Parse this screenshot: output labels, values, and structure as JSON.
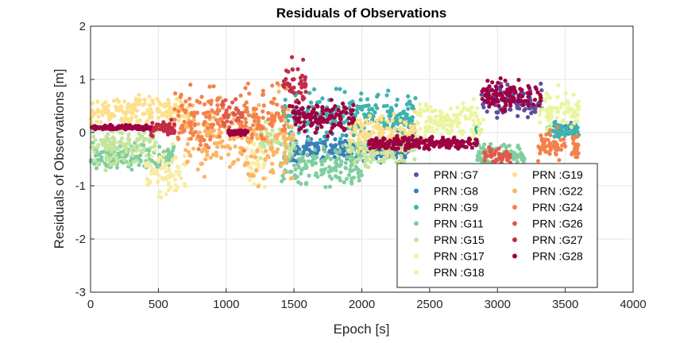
{
  "chart_data": {
    "type": "scatter",
    "title": "Residuals of Observations",
    "xlabel": "Epoch [s]",
    "ylabel": "Residuals of Observations [m]",
    "xlim": [
      0,
      4000
    ],
    "ylim": [
      -3,
      2
    ],
    "xticks": [
      "0",
      "500",
      "1000",
      "1500",
      "2000",
      "2500",
      "3000",
      "3500",
      "4000"
    ],
    "yticks": [
      "-3",
      "-2",
      "-1",
      "0",
      "1",
      "2"
    ],
    "grid": true,
    "legend_position": "bottom-right",
    "series": [
      {
        "name": "PRN :G7",
        "color": "#5e4fa2",
        "segments": [
          [
            2880,
            3330,
            0.6,
            0.2
          ]
        ]
      },
      {
        "name": "PRN :G8",
        "color": "#3a7fb9",
        "segments": [
          [
            1470,
            2360,
            -0.3,
            0.15
          ],
          [
            3500,
            3580,
            0.1,
            0.1
          ]
        ]
      },
      {
        "name": "PRN :G9",
        "color": "#3fb2ad",
        "segments": [
          [
            1420,
            2400,
            0.3,
            0.3
          ],
          [
            2840,
            2870,
            0.05,
            0.05
          ],
          [
            3370,
            3600,
            0.05,
            0.1
          ]
        ]
      },
      {
        "name": "PRN :G11",
        "color": "#80ce9f",
        "segments": [
          [
            0,
            620,
            -0.45,
            0.15
          ],
          [
            1400,
            2000,
            -0.6,
            0.3
          ],
          [
            2850,
            3200,
            -0.4,
            0.15
          ]
        ]
      },
      {
        "name": "PRN :G15",
        "color": "#c4e59d",
        "segments": [
          [
            0,
            480,
            -0.25,
            0.25
          ],
          [
            1250,
            1500,
            -0.15,
            0.2
          ],
          [
            1900,
            2400,
            -0.3,
            0.2
          ]
        ]
      },
      {
        "name": "PRN :G17",
        "color": "#eaf59d",
        "segments": [
          [
            2400,
            2900,
            0.2,
            0.25
          ],
          [
            3300,
            3600,
            0.4,
            0.25
          ]
        ]
      },
      {
        "name": "PRN :G18",
        "color": "#f8eca4",
        "segments": [
          [
            400,
            700,
            -0.8,
            0.3
          ],
          [
            1150,
            1300,
            -0.5,
            0.3
          ]
        ]
      },
      {
        "name": "PRN :G19",
        "color": "#fee08b",
        "segments": [
          [
            0,
            720,
            0.4,
            0.2
          ],
          [
            1900,
            2400,
            0.0,
            0.25
          ]
        ]
      },
      {
        "name": "PRN :G22",
        "color": "#fdb462",
        "segments": [
          [
            700,
            1100,
            -0.1,
            0.4
          ],
          [
            1100,
            1500,
            -0.2,
            0.55
          ]
        ]
      },
      {
        "name": "PRN :G24",
        "color": "#f4814b",
        "segments": [
          [
            600,
            1000,
            0.3,
            0.4
          ],
          [
            1100,
            1450,
            0.3,
            0.4
          ],
          [
            3300,
            3600,
            -0.25,
            0.2
          ]
        ]
      },
      {
        "name": "PRN :G26",
        "color": "#df5a49",
        "segments": [
          [
            960,
            1120,
            0.35,
            0.2
          ],
          [
            2900,
            3100,
            -0.45,
            0.1
          ]
        ]
      },
      {
        "name": "PRN :G27",
        "color": "#c12c48",
        "segments": [
          [
            440,
            620,
            0.08,
            0.1
          ],
          [
            1420,
            1600,
            0.9,
            0.25
          ]
        ]
      },
      {
        "name": "PRN :G28",
        "color": "#9e0142",
        "segments": [
          [
            0,
            440,
            0.1,
            0.03
          ],
          [
            1000,
            1160,
            0.0,
            0.03
          ],
          [
            1450,
            1950,
            0.3,
            0.2
          ],
          [
            2050,
            2850,
            -0.2,
            0.08
          ],
          [
            2880,
            3320,
            0.7,
            0.2
          ]
        ]
      }
    ]
  }
}
